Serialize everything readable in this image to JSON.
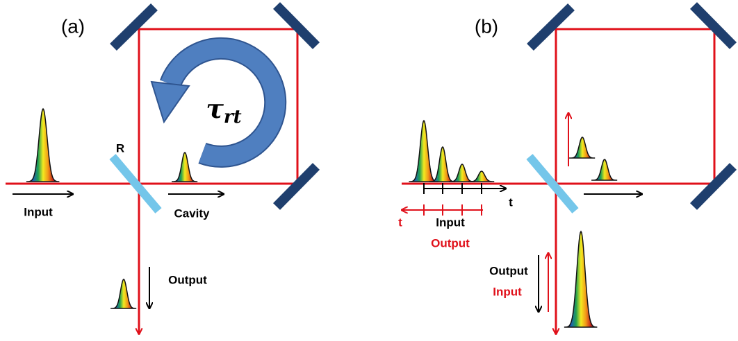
{
  "panels": [
    {
      "label": "(a)",
      "mirror_label": "R",
      "input": "Input",
      "cavity": "Cavity",
      "output": "Output",
      "round_trip": "τ",
      "round_trip_sub": "rt"
    },
    {
      "label": "(b)",
      "axis_black": "t",
      "axis_red": "t",
      "timeline_input": "Input",
      "timeline_output": "Output",
      "port_output": "Output",
      "port_input": "Input"
    }
  ]
}
